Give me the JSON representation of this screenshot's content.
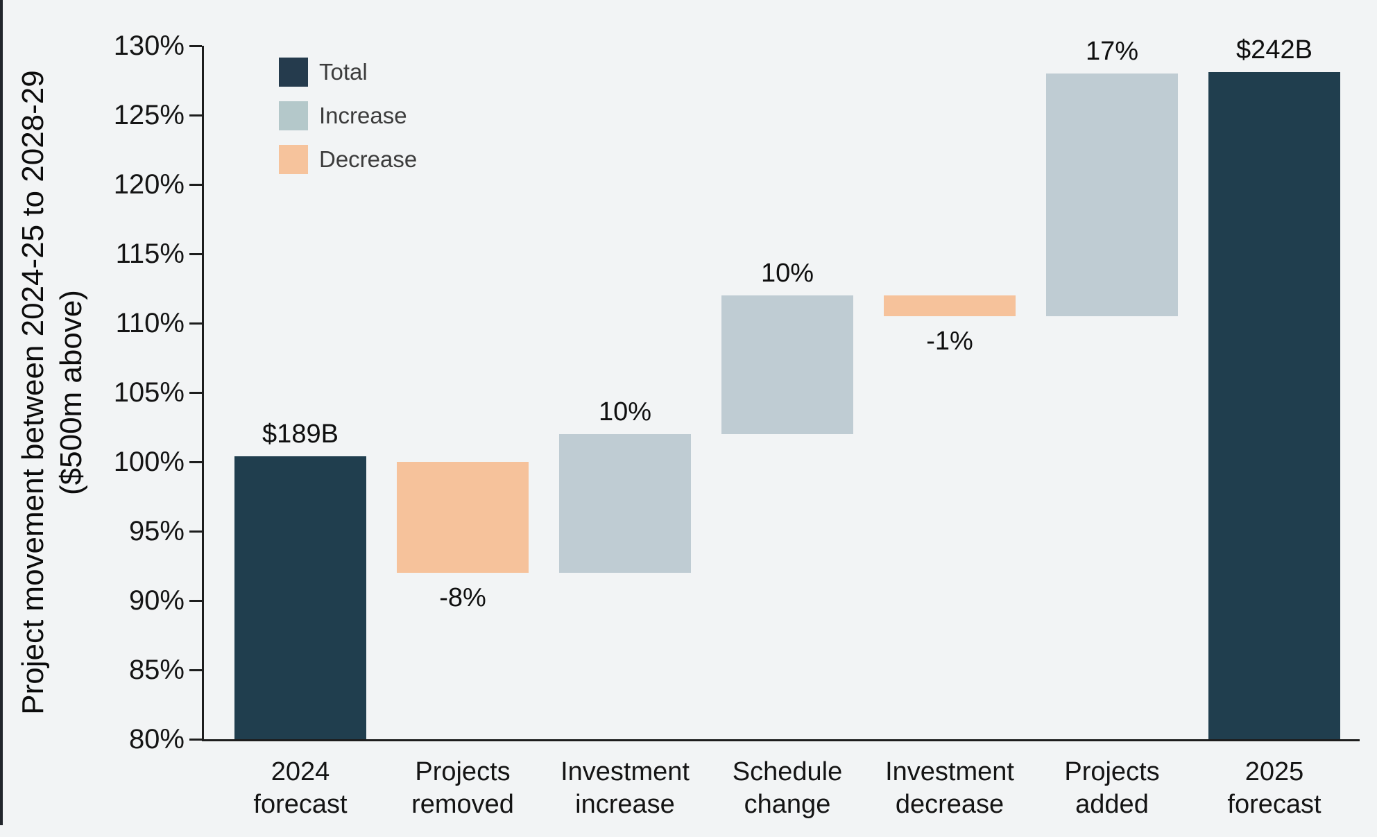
{
  "page": {
    "background": "#f2f4f5",
    "left_border_color": "#22262c",
    "axis_color": "#1d1d1d"
  },
  "chart_data": {
    "type": "waterfall",
    "title": "",
    "grid": false,
    "legend_position": "top-left",
    "y_axis": {
      "label_line1": "Project movement between 2024-25 to 2028-29",
      "label_line2": "($500m above)",
      "min": 80,
      "max": 130,
      "tick_step": 5,
      "tick_labels": [
        "130%",
        "125%",
        "120%",
        "115%",
        "110%",
        "105%",
        "100%",
        "95%",
        "90%",
        "85%",
        "80%"
      ]
    },
    "categories": [
      "2024 forecast",
      "Projects removed",
      "Investment increase",
      "Schedule change",
      "Investment decrease",
      "Projects added",
      "2025 forecast"
    ],
    "bars": [
      {
        "name": "2024 forecast",
        "label_lines": [
          "2024",
          "forecast"
        ],
        "type": "total",
        "start": 80,
        "end": 100.4,
        "value_label": "$189B",
        "value_label_position": "above"
      },
      {
        "name": "Projects removed",
        "label_lines": [
          "Projects",
          "removed"
        ],
        "type": "decrease",
        "start": 100,
        "end": 92,
        "value_label": "-8%",
        "value_label_position": "below"
      },
      {
        "name": "Investment increase",
        "label_lines": [
          "Investment",
          "increase"
        ],
        "type": "increase",
        "start": 92,
        "end": 102,
        "value_label": "10%",
        "value_label_position": "above"
      },
      {
        "name": "Schedule change",
        "label_lines": [
          "Schedule",
          "change"
        ],
        "type": "increase",
        "start": 102,
        "end": 112,
        "value_label": "10%",
        "value_label_position": "above"
      },
      {
        "name": "Investment decrease",
        "label_lines": [
          "Investment",
          "decrease"
        ],
        "type": "decrease",
        "start": 112,
        "end": 110.5,
        "value_label": "-1%",
        "value_label_position": "below"
      },
      {
        "name": "Projects added",
        "label_lines": [
          "Projects",
          "added"
        ],
        "type": "increase",
        "start": 110.5,
        "end": 128,
        "value_label": "17%",
        "value_label_position": "above"
      },
      {
        "name": "2025 forecast",
        "label_lines": [
          "2025",
          "forecast"
        ],
        "type": "total",
        "start": 80,
        "end": 128.1,
        "value_label": "$242B",
        "value_label_position": "above"
      }
    ],
    "legend": [
      {
        "label": "Total",
        "color": "#253b4d"
      },
      {
        "label": "Increase",
        "color": "#b4c8ca"
      },
      {
        "label": "Decrease",
        "color": "#f6c39c"
      }
    ],
    "series_colors": {
      "total": "#203e4e",
      "increase": "#bfccd3",
      "decrease": "#f6c29b"
    }
  }
}
